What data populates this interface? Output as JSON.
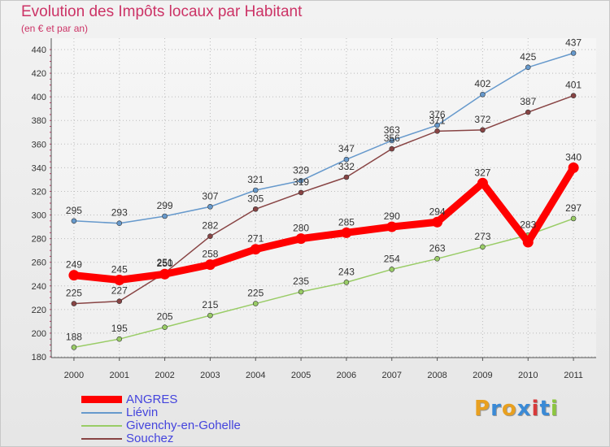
{
  "header": {
    "title": "Evolution des Impôts locaux par Habitant",
    "subtitle": "(en € et par an)"
  },
  "logo": {
    "letters": [
      "P",
      "r",
      "o",
      "x",
      "i",
      "t",
      "i"
    ],
    "colors": [
      "#e8a020",
      "#3a8ad6",
      "#e8a020",
      "#3a8ad6",
      "#d83a3a",
      "#3a8ad6",
      "#8cc63f"
    ]
  },
  "chart_data": {
    "type": "line",
    "x": [
      "2000",
      "2001",
      "2002",
      "2003",
      "2004",
      "2005",
      "2006",
      "2007",
      "2008",
      "2009",
      "2010",
      "2011"
    ],
    "ylim": [
      180,
      440
    ],
    "yticks": [
      180,
      200,
      220,
      240,
      260,
      280,
      300,
      320,
      340,
      360,
      380,
      400,
      420,
      440
    ],
    "grid": true,
    "legend": "bottom-left",
    "series": [
      {
        "name": "ANGRES",
        "color": "#ff0000",
        "values": [
          249,
          245,
          250,
          258,
          271,
          280,
          285,
          290,
          294,
          327,
          277,
          340
        ],
        "labels": [
          "249",
          "245",
          "250",
          "258",
          "271",
          "280",
          "285",
          "290",
          "294",
          "327",
          "",
          "340"
        ]
      },
      {
        "name": "Liévin",
        "color": "#6699cc",
        "values": [
          295,
          293,
          299,
          307,
          321,
          329,
          347,
          363,
          376,
          402,
          425,
          437
        ],
        "labels": [
          "295",
          "293",
          "299",
          "307",
          "321",
          "329",
          "347",
          "363",
          "376",
          "402",
          "425",
          "437"
        ]
      },
      {
        "name": "Givenchy-en-Gohelle",
        "color": "#99cc66",
        "values": [
          188,
          195,
          205,
          215,
          225,
          235,
          243,
          254,
          263,
          273,
          283,
          297
        ],
        "labels": [
          "188",
          "195",
          "205",
          "215",
          "225",
          "235",
          "243",
          "254",
          "263",
          "273",
          "283",
          "297"
        ]
      },
      {
        "name": "Souchez",
        "color": "#884444",
        "values": [
          225,
          227,
          251,
          282,
          305,
          319,
          332,
          356,
          371,
          372,
          387,
          401
        ],
        "labels": [
          "225",
          "227",
          "251",
          "282",
          "305",
          "319",
          "332",
          "356",
          "371",
          "372",
          "387",
          "401"
        ]
      }
    ]
  }
}
